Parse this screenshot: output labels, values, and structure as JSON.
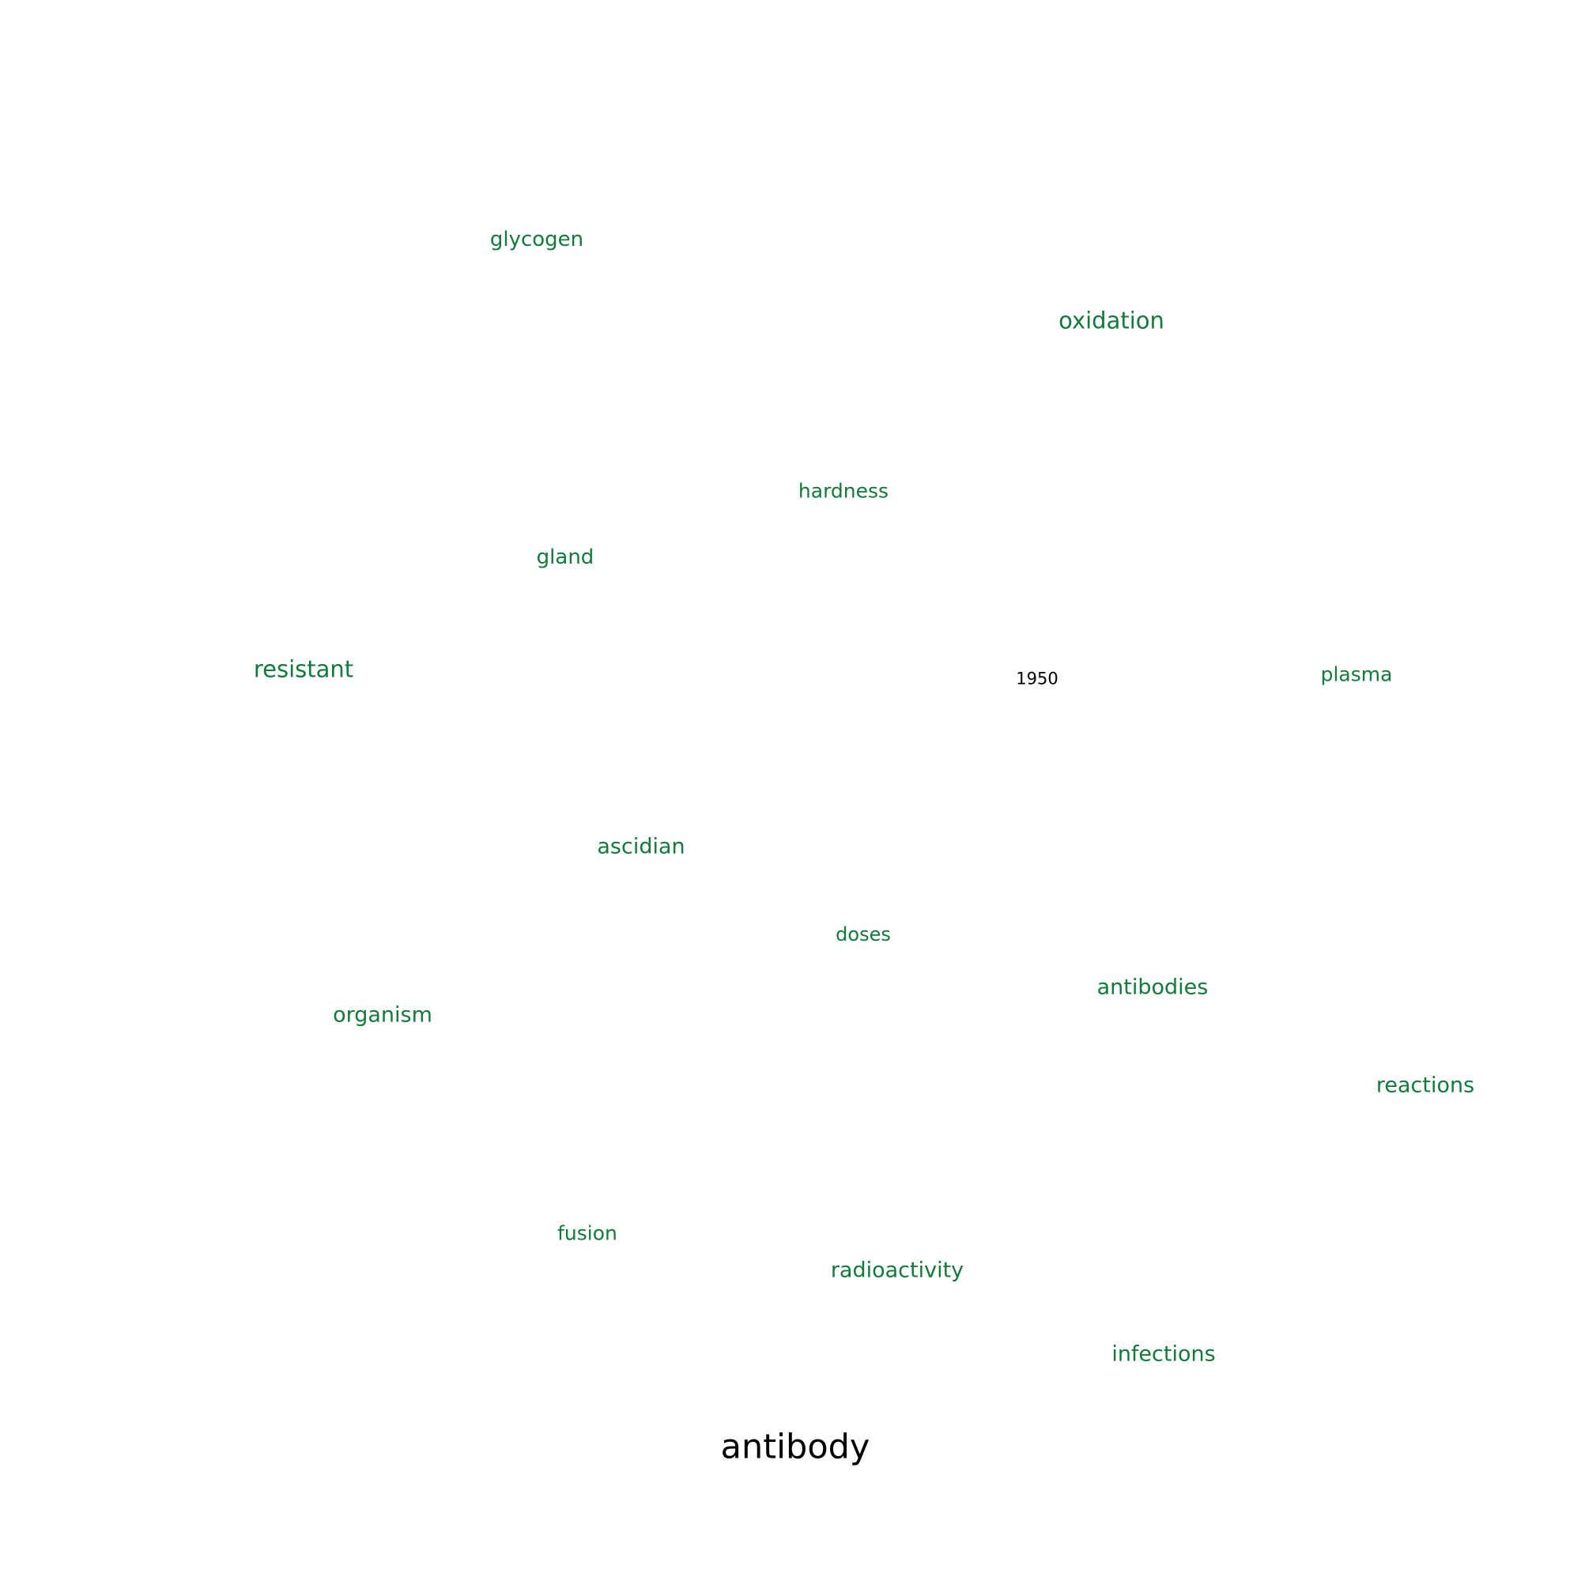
{
  "target_word": "antibody",
  "year": "1950",
  "neighbor_color": "#127a3a",
  "neighbors": {
    "glycogen": "glycogen",
    "oxidation": "oxidation",
    "hardness": "hardness",
    "gland": "gland",
    "resistant": "resistant",
    "plasma": "plasma",
    "ascidian": "ascidian",
    "doses": "doses",
    "antibodies": "antibodies",
    "organism": "organism",
    "reactions": "reactions",
    "fusion": "fusion",
    "radioactivity": "radioactivity",
    "infections": "infections"
  }
}
